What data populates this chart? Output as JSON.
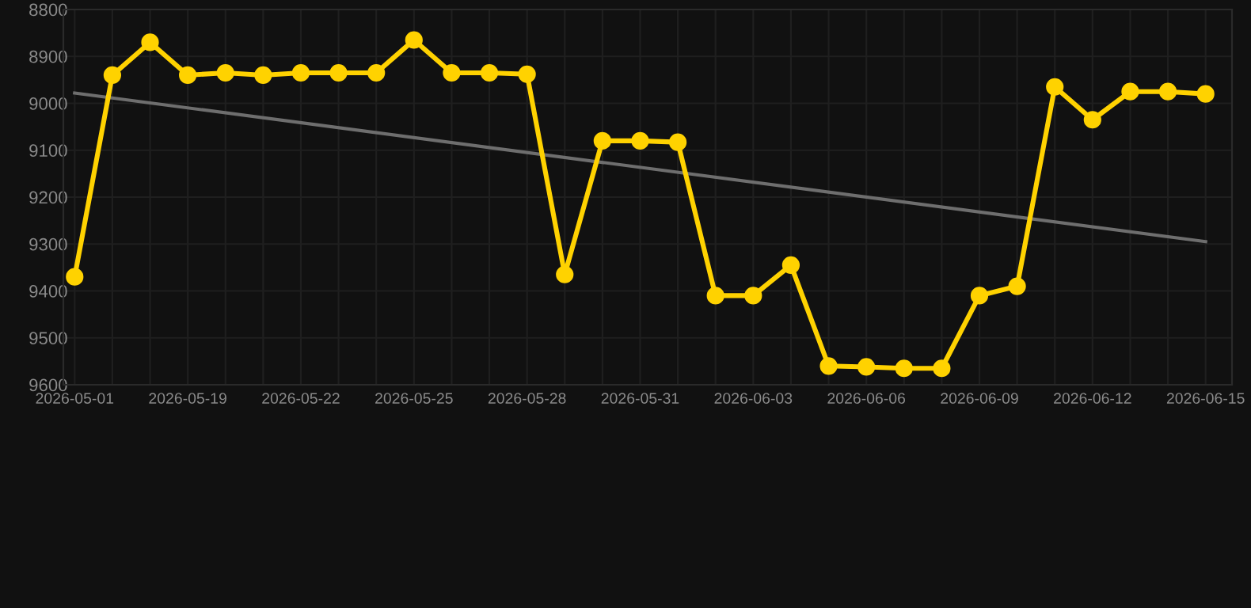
{
  "chart_data": {
    "type": "line",
    "categories": [
      "2026-05-01",
      null,
      null,
      "2026-05-19",
      null,
      null,
      "2026-05-22",
      null,
      null,
      "2026-05-25",
      null,
      null,
      "2026-05-28",
      null,
      null,
      "2026-05-31",
      null,
      null,
      "2026-06-03",
      null,
      null,
      "2026-06-06",
      null,
      null,
      "2026-06-09",
      null,
      null,
      "2026-06-12",
      null,
      null,
      "2026-06-15"
    ],
    "series": [
      {
        "color": "#ffd200",
        "marker": "circle",
        "values": [
          9370,
          8940,
          8870,
          8940,
          8935,
          8940,
          8935,
          8935,
          8935,
          8865,
          8935,
          8935,
          8938,
          9365,
          9080,
          9080,
          9083,
          9410,
          9410,
          9345,
          9560,
          9562,
          9565,
          9565,
          9410,
          9390,
          8965,
          9035,
          8975,
          8975,
          8980
        ]
      },
      {
        "type": "line",
        "color": "#6e6e6e",
        "marker": "none",
        "values": [
          8978,
          null,
          null,
          null,
          null,
          null,
          null,
          null,
          null,
          null,
          null,
          null,
          null,
          null,
          null,
          null,
          null,
          null,
          null,
          null,
          null,
          null,
          null,
          null,
          null,
          null,
          null,
          null,
          null,
          null,
          9295
        ]
      }
    ],
    "ylim": [
      9600,
      8800
    ],
    "yticks": [
      8800,
      8900,
      9000,
      9100,
      9200,
      9300,
      9400,
      9500,
      9600
    ],
    "grid": true,
    "line_style": "solid"
  }
}
